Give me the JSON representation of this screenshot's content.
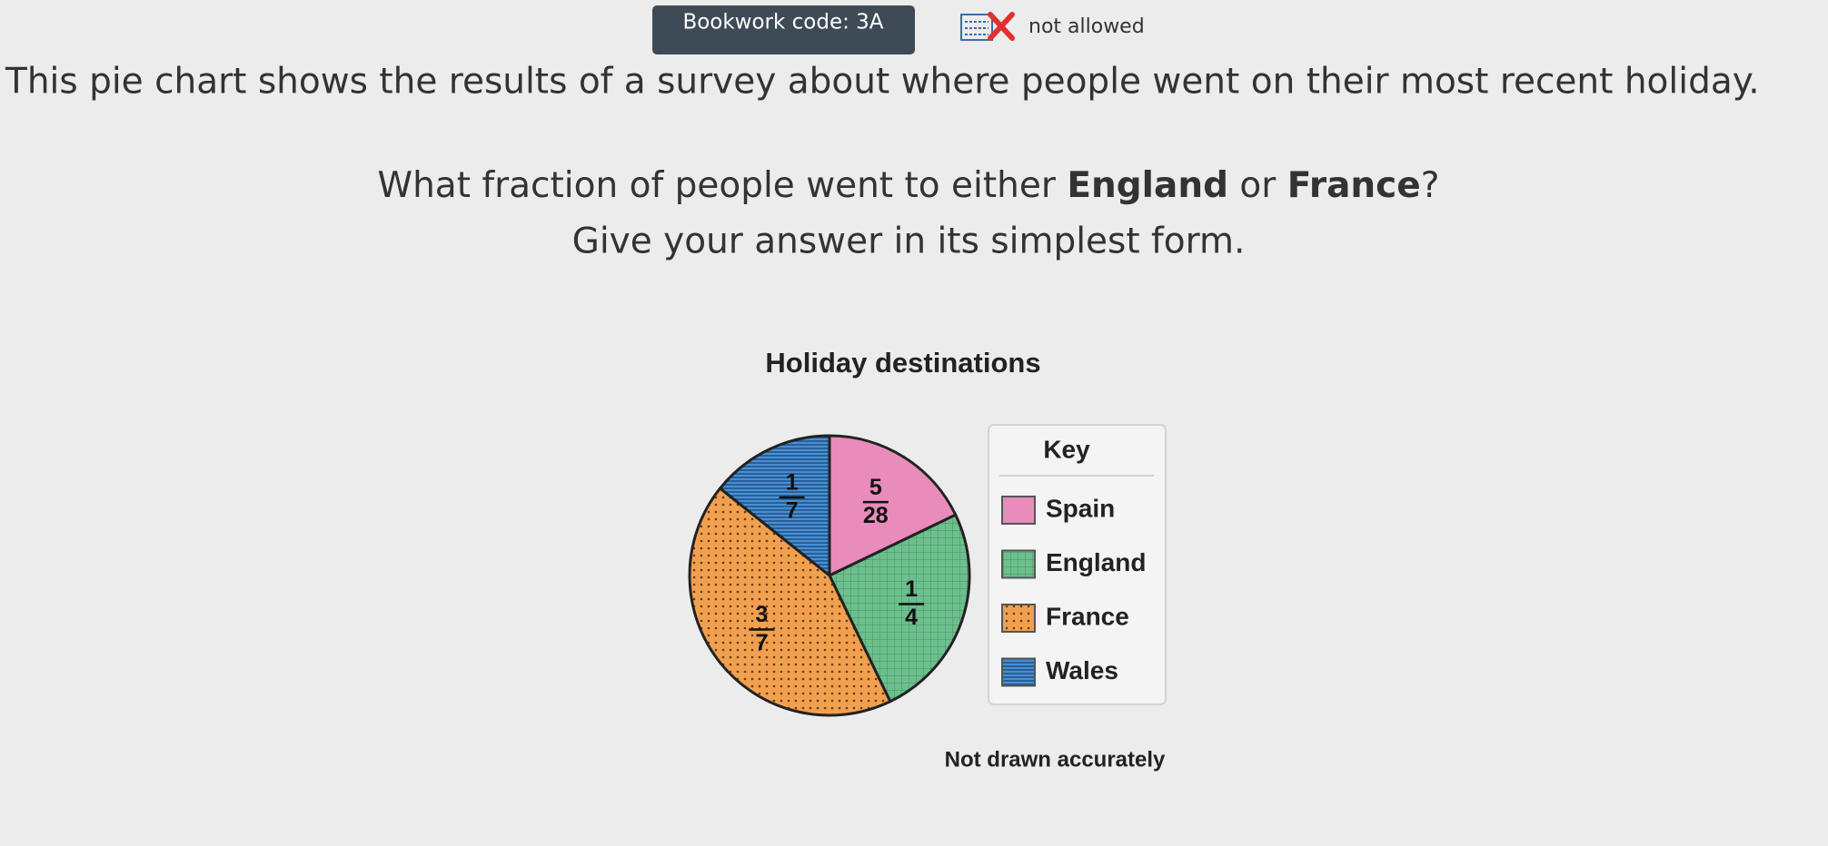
{
  "header": {
    "bookwork": "Bookwork code: 3A",
    "calculator": "not allowed"
  },
  "question": {
    "intro": "This pie chart shows the results of a survey about where people went on their most recent holiday.",
    "ask": [
      "What fraction of people went to either ",
      "England",
      " or ",
      "France",
      "?"
    ],
    "instruction": "Give your answer in its simplest form."
  },
  "chart_data": {
    "type": "pie",
    "title": "Holiday destinations",
    "categories": [
      "Spain",
      "England",
      "France",
      "Wales"
    ],
    "values": [
      0.17857142857142858,
      0.25,
      0.42857142857142855,
      0.14285714285714285
    ],
    "value_labels": [
      {
        "numerator": 5,
        "denominator": 28
      },
      {
        "numerator": 1,
        "denominator": 4
      },
      {
        "numerator": 3,
        "denominator": 7
      },
      {
        "numerator": 1,
        "denominator": 7
      }
    ],
    "colors": [
      "#e98bbb",
      "#6cc08e",
      "#f0a04f",
      "#4a8fd3"
    ],
    "legend_title": "Key",
    "note": "Not drawn accurately"
  }
}
